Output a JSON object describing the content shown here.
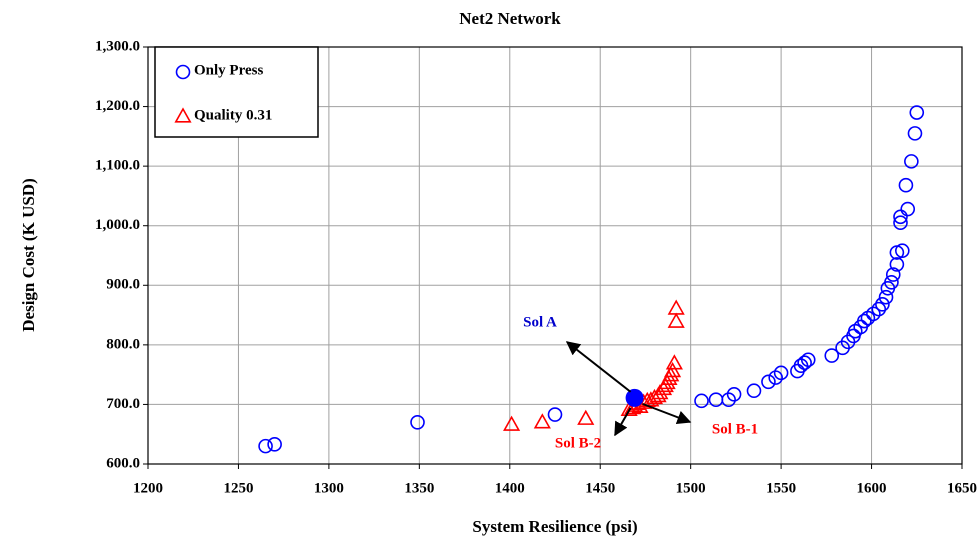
{
  "chart_data": {
    "type": "scatter",
    "title": "Net2 Network",
    "xlabel": "System Resilience (psi)",
    "ylabel": "Design Cost (K USD)",
    "xlim": [
      1200,
      1650
    ],
    "xticks": [
      1200,
      1250,
      1300,
      1350,
      1400,
      1450,
      1500,
      1550,
      1600,
      1650
    ],
    "ylim": [
      600,
      1300
    ],
    "yticks": [
      {
        "value": 600,
        "label": "600.0"
      },
      {
        "value": 700,
        "label": "700.0"
      },
      {
        "value": 800,
        "label": "800.0"
      },
      {
        "value": 900,
        "label": "900.0"
      },
      {
        "value": 1000,
        "label": "1,000.0"
      },
      {
        "value": 1100,
        "label": "1,100.0"
      },
      {
        "value": 1200,
        "label": "1,200.0"
      },
      {
        "value": 1300,
        "label": "1,300.0"
      }
    ],
    "grid": true,
    "series": [
      {
        "name": "Only Press",
        "color": "#0000ff",
        "marker": "circle",
        "x": [
          1265,
          1270,
          1349,
          1425,
          1506,
          1514,
          1521,
          1524,
          1535,
          1543,
          1547,
          1550,
          1559,
          1561,
          1563,
          1565,
          1578,
          1584,
          1587,
          1590,
          1591,
          1594,
          1596,
          1598,
          1601,
          1604,
          1606,
          1608,
          1609,
          1611,
          1612,
          1614,
          1614,
          1617,
          1616,
          1616,
          1620,
          1619,
          1622,
          1624,
          1625
        ],
        "values": [
          630,
          633,
          670,
          683,
          706,
          708,
          708,
          717,
          723,
          738,
          745,
          753,
          756,
          765,
          770,
          775,
          782,
          795,
          805,
          815,
          823,
          830,
          840,
          845,
          852,
          860,
          868,
          880,
          895,
          905,
          918,
          935,
          955,
          958,
          1005,
          1015,
          1028,
          1068,
          1108,
          1155,
          1190
        ]
      },
      {
        "name": "Quality 0.31",
        "color": "#ff0000",
        "marker": "triangle",
        "x": [
          1401,
          1418,
          1442,
          1466,
          1468,
          1469,
          1471,
          1472,
          1474,
          1476,
          1478,
          1480,
          1482,
          1483,
          1485,
          1486,
          1487,
          1488,
          1489,
          1490,
          1491,
          1492,
          1492
        ],
        "values": [
          665,
          669,
          675,
          690,
          693,
          697,
          700,
          695,
          702,
          705,
          706,
          710,
          713,
          718,
          725,
          730,
          735,
          742,
          748,
          755,
          768,
          838,
          860
        ]
      }
    ],
    "highlight": {
      "x": 1469,
      "y": 711,
      "color": "#0000ff"
    },
    "annotations": [
      {
        "text": "Sol A",
        "color": "#0000cc"
      },
      {
        "text": "Sol B-1",
        "color": "#ff0000"
      },
      {
        "text": "Sol B-2",
        "color": "#ff0000"
      }
    ]
  }
}
